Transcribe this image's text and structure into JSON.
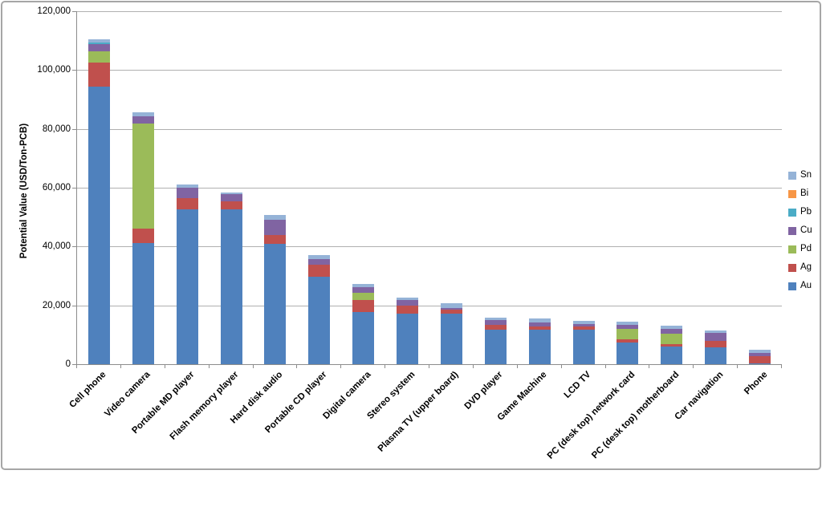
{
  "chart_data": {
    "type": "bar",
    "stacked": true,
    "title": "",
    "xlabel": "",
    "ylabel": "Potential Value (USD/Ton-PCB)",
    "ylim": [
      0,
      120000
    ],
    "ytick_interval": 20000,
    "ytick_labels": [
      "0",
      "20,000",
      "40,000",
      "60,000",
      "80,000",
      "100,000",
      "120,000"
    ],
    "grid": true,
    "legend_position": "right",
    "legend_order_top_to_bottom": [
      "Sn",
      "Bi",
      "Pb",
      "Cu",
      "Pd",
      "Ag",
      "Au"
    ],
    "categories": [
      "Cell phone",
      "Video camera",
      "Portable MD player",
      "Flash memory player",
      "Hard disk audio",
      "Portable CD player",
      "Digital camera",
      "Stereo system",
      "Plasma TV (upper board)",
      "DVD player",
      "Game Machine",
      "LCD TV",
      "PC (desk top) network card",
      "PC (desk top) motherboard",
      "Car navigation",
      "Phone"
    ],
    "series": [
      {
        "name": "Au",
        "color": "#4F81BD",
        "values": [
          94500,
          41300,
          52600,
          52600,
          41000,
          29600,
          17800,
          17100,
          17300,
          11800,
          11600,
          11600,
          7500,
          6000,
          5700,
          400
        ]
      },
      {
        "name": "Ag",
        "color": "#C0504D",
        "values": [
          8000,
          4700,
          3800,
          2700,
          3000,
          4100,
          3900,
          2700,
          1200,
          1700,
          1100,
          1100,
          900,
          900,
          2300,
          2300
        ]
      },
      {
        "name": "Pd",
        "color": "#9BBB59",
        "values": [
          3900,
          35800,
          0,
          0,
          0,
          0,
          2500,
          0,
          0,
          0,
          0,
          0,
          3600,
          3600,
          0,
          0
        ]
      },
      {
        "name": "Cu",
        "color": "#8064A2",
        "values": [
          2500,
          2500,
          3500,
          2500,
          5000,
          1900,
          2000,
          2000,
          700,
          1500,
          1500,
          1000,
          1400,
          1600,
          2700,
          1200
        ]
      },
      {
        "name": "Pb",
        "color": "#4BACC6",
        "values": [
          500,
          0,
          0,
          0,
          0,
          0,
          0,
          0,
          0,
          0,
          0,
          0,
          0,
          0,
          0,
          0
        ]
      },
      {
        "name": "Bi",
        "color": "#F79646",
        "values": [
          0,
          0,
          0,
          0,
          0,
          0,
          0,
          0,
          0,
          0,
          0,
          0,
          0,
          0,
          0,
          0
        ]
      },
      {
        "name": "Sn",
        "color": "#95B3D7",
        "values": [
          1100,
          1400,
          1200,
          600,
          1650,
          1600,
          1100,
          900,
          1600,
          700,
          1350,
          1100,
          1100,
          1100,
          900,
          1100
        ]
      }
    ],
    "approx_totals": [
      110500,
      85700,
      61100,
      58400,
      50650,
      37200,
      27300,
      22700,
      20800,
      15700,
      15550,
      14800,
      14500,
      13200,
      11600,
      5000
    ]
  }
}
